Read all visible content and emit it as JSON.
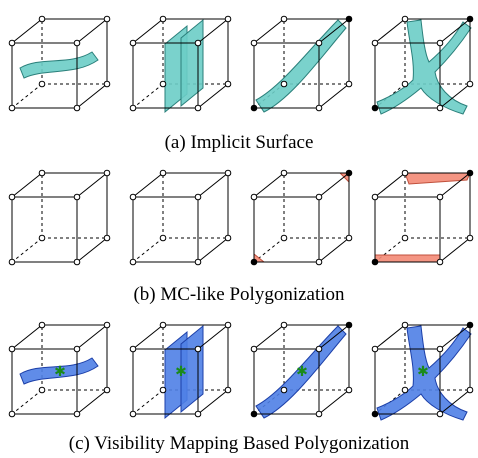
{
  "captions": [
    "(a) Implicit Surface",
    "(b) MC-like Polygonization",
    "(c) Visibility Mapping Based Polygonization"
  ]
}
